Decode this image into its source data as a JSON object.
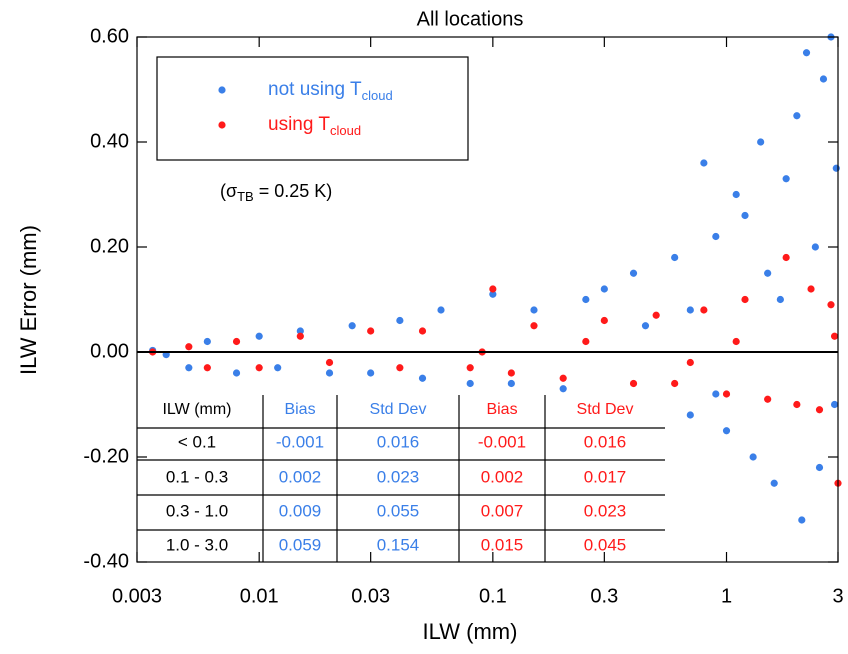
{
  "chart_data": {
    "type": "scatter",
    "title": "All locations",
    "x_label": "ILW (mm)",
    "y_label": "ILW Error (mm)",
    "x_scale": "log",
    "xlim": [
      0.003,
      3
    ],
    "xticks": [
      0.003,
      0.01,
      0.03,
      0.1,
      0.3,
      1,
      3
    ],
    "ylim": [
      -0.4,
      0.6
    ],
    "yticks": [
      {
        "value": -0.4,
        "label": "-0.40"
      },
      {
        "value": -0.2,
        "label": "-0.20"
      },
      {
        "value": 0,
        "label": "0.00"
      },
      {
        "value": 0.2,
        "label": "0.20"
      },
      {
        "value": 0.4,
        "label": "0.40"
      },
      {
        "value": 0.6,
        "label": "0.60"
      }
    ],
    "hline": 0,
    "legend": "upper left",
    "annotation": {
      "before": "(σ",
      "sub": "TB",
      "after": " = 0.25 K)"
    },
    "series": [
      {
        "name": "not using T",
        "name_subscript": "cloud",
        "color": "#3a7fe8",
        "x": [
          0.0035,
          0.004,
          0.005,
          0.006,
          0.008,
          0.01,
          0.012,
          0.015,
          0.02,
          0.025,
          0.03,
          0.04,
          0.05,
          0.06,
          0.08,
          0.1,
          0.12,
          0.15,
          0.2,
          0.25,
          0.3,
          0.35,
          0.4,
          0.5,
          0.6,
          0.7,
          0.8,
          0.9,
          1.0,
          1.1,
          1.2,
          1.3,
          1.4,
          1.5,
          1.6,
          1.8,
          2.0,
          2.1,
          2.2,
          2.4,
          2.5,
          2.6,
          2.8,
          2.9,
          2.95,
          1.7,
          0.9,
          0.45,
          0.7
        ],
        "values": [
          0.003,
          -0.005,
          -0.03,
          0.02,
          -0.04,
          0.03,
          -0.03,
          0.04,
          -0.04,
          0.05,
          -0.04,
          0.06,
          -0.05,
          0.08,
          -0.06,
          0.11,
          -0.06,
          0.08,
          -0.07,
          0.1,
          0.12,
          -0.09,
          0.15,
          -0.1,
          0.18,
          -0.12,
          0.36,
          0.22,
          -0.15,
          0.3,
          0.26,
          -0.2,
          0.4,
          0.15,
          -0.25,
          0.33,
          0.45,
          -0.32,
          0.57,
          0.2,
          -0.22,
          0.52,
          0.6,
          -0.1,
          0.35,
          0.1,
          -0.08,
          0.05,
          0.08
        ]
      },
      {
        "name": "using T",
        "name_subscript": "cloud",
        "color": "#ff1a1a",
        "x": [
          0.0035,
          0.005,
          0.006,
          0.008,
          0.01,
          0.015,
          0.02,
          0.03,
          0.04,
          0.05,
          0.08,
          0.1,
          0.12,
          0.15,
          0.2,
          0.3,
          0.4,
          0.5,
          0.6,
          0.8,
          1.0,
          1.2,
          1.5,
          1.8,
          2.0,
          2.3,
          2.5,
          2.8,
          3.0,
          2.9,
          1.1,
          0.7,
          0.25,
          0.09
        ],
        "values": [
          0,
          0.01,
          -0.03,
          0.02,
          -0.03,
          0.03,
          -0.02,
          0.04,
          -0.03,
          0.04,
          -0.03,
          0.12,
          -0.04,
          0.05,
          -0.05,
          0.06,
          -0.06,
          0.07,
          -0.06,
          0.08,
          -0.08,
          0.1,
          -0.09,
          0.18,
          -0.1,
          0.12,
          -0.11,
          0.09,
          -0.25,
          0.03,
          0.02,
          -0.02,
          0.02,
          0
        ]
      }
    ],
    "inset_table": {
      "header": [
        "ILW (mm)",
        "Bias",
        "Std Dev",
        "Bias",
        "Std Dev"
      ],
      "column_colors": [
        "#000000",
        "#3a7fe8",
        "#3a7fe8",
        "#ff1a1a",
        "#ff1a1a"
      ],
      "rows": [
        [
          "< 0.1",
          "-0.001",
          "0.016",
          "-0.001",
          "0.016"
        ],
        [
          "0.1 - 0.3",
          "0.002",
          "0.023",
          "0.002",
          "0.017"
        ],
        [
          "0.3 - 1.0",
          "0.009",
          "0.055",
          "0.007",
          "0.023"
        ],
        [
          "1.0 - 3.0",
          "0.059",
          "0.154",
          "0.015",
          "0.045"
        ]
      ]
    }
  }
}
